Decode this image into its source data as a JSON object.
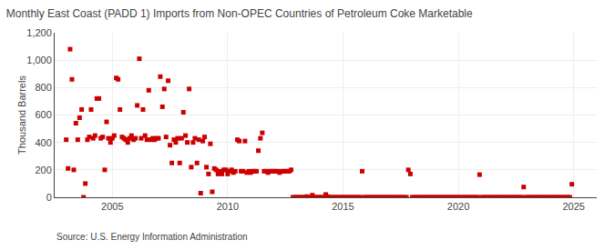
{
  "chart_data": {
    "type": "scatter",
    "title": "Monthly East Coast (PADD 1) Imports from Non-OPEC Countries of Petroleum Coke Marketable",
    "ylabel": "Thousand Barrels",
    "source": "Source: U.S. Energy Information Administration",
    "color": "#cc0000",
    "marker": "square",
    "grid": true,
    "xlim": [
      2002.5,
      2026.0
    ],
    "xticks": [
      2005,
      2010,
      2015,
      2020,
      2025
    ],
    "ylim": [
      0,
      1200
    ],
    "yticks": [
      0,
      200,
      400,
      600,
      800,
      {
        "value": 1000,
        "label": "1,000"
      },
      {
        "value": 1200,
        "label": "1,200"
      }
    ],
    "x": [
      2003.0,
      2003.08,
      2003.17,
      2003.25,
      2003.33,
      2003.42,
      2003.5,
      2003.58,
      2003.67,
      2003.75,
      2003.83,
      2003.92,
      2004.0,
      2004.08,
      2004.17,
      2004.25,
      2004.33,
      2004.42,
      2004.5,
      2004.58,
      2004.67,
      2004.75,
      2004.83,
      2004.92,
      2005.0,
      2005.08,
      2005.17,
      2005.25,
      2005.33,
      2005.42,
      2005.5,
      2005.58,
      2005.67,
      2005.75,
      2005.83,
      2005.92,
      2006.0,
      2006.08,
      2006.17,
      2006.25,
      2006.33,
      2006.42,
      2006.5,
      2006.58,
      2006.67,
      2006.75,
      2006.83,
      2006.92,
      2007.0,
      2007.08,
      2007.17,
      2007.25,
      2007.33,
      2007.42,
      2007.5,
      2007.58,
      2007.67,
      2007.75,
      2007.83,
      2007.92,
      2008.0,
      2008.08,
      2008.17,
      2008.25,
      2008.33,
      2008.42,
      2008.5,
      2008.58,
      2008.67,
      2008.75,
      2008.83,
      2008.92,
      2009.0,
      2009.08,
      2009.17,
      2009.25,
      2009.33,
      2009.42,
      2009.5,
      2009.58,
      2009.67,
      2009.75,
      2009.83,
      2009.92,
      2010.0,
      2010.08,
      2010.17,
      2010.25,
      2010.33,
      2010.42,
      2010.5,
      2010.58,
      2010.67,
      2010.75,
      2010.83,
      2010.92,
      2011.0,
      2011.08,
      2011.17,
      2011.25,
      2011.33,
      2011.42,
      2011.5,
      2011.58,
      2011.67,
      2011.75,
      2011.83,
      2011.92,
      2012.0,
      2012.08,
      2012.17,
      2012.25,
      2012.33,
      2012.42,
      2012.5,
      2012.58,
      2012.67,
      2012.75,
      2012.83,
      2012.92,
      2013.0,
      2013.08,
      2013.17,
      2013.25,
      2013.33,
      2013.42,
      2013.5,
      2013.58,
      2013.67,
      2013.75,
      2013.83,
      2013.92,
      2014.0,
      2014.08,
      2014.17,
      2014.25,
      2014.33,
      2014.42,
      2014.5,
      2014.58,
      2014.67,
      2014.75,
      2014.83,
      2014.92,
      2015.0,
      2015.08,
      2015.17,
      2015.25,
      2015.33,
      2015.42,
      2015.5,
      2015.58,
      2015.67,
      2015.75,
      2015.83,
      2015.92,
      2016.0,
      2016.08,
      2016.17,
      2016.25,
      2016.33,
      2016.42,
      2016.5,
      2016.58,
      2016.67,
      2016.75,
      2016.83,
      2016.92,
      2017.0,
      2017.08,
      2017.17,
      2017.25,
      2017.33,
      2017.42,
      2017.5,
      2017.58,
      2017.67,
      2017.75,
      2017.83,
      2017.92,
      2018.0,
      2018.08,
      2018.17,
      2018.25,
      2018.33,
      2018.42,
      2018.5,
      2018.58,
      2018.67,
      2018.75,
      2018.83,
      2018.92,
      2019.0,
      2019.08,
      2019.17,
      2019.25,
      2019.33,
      2019.42,
      2019.5,
      2019.58,
      2019.67,
      2019.75,
      2019.83,
      2019.92,
      2020.0,
      2020.08,
      2020.17,
      2020.25,
      2020.33,
      2020.42,
      2020.5,
      2020.58,
      2020.67,
      2020.75,
      2020.83,
      2020.92,
      2021.0,
      2021.08,
      2021.17,
      2021.25,
      2021.33,
      2021.42,
      2021.5,
      2021.58,
      2021.67,
      2021.75,
      2021.83,
      2021.92,
      2022.0,
      2022.08,
      2022.17,
      2022.25,
      2022.33,
      2022.42,
      2022.5,
      2022.58,
      2022.67,
      2022.75,
      2022.83,
      2022.92,
      2023.0,
      2023.08,
      2023.17,
      2023.25,
      2023.33,
      2023.42,
      2023.5,
      2023.58,
      2023.67,
      2023.75,
      2023.83,
      2023.92,
      2024.0,
      2024.08,
      2024.17,
      2024.25,
      2024.33,
      2024.42,
      2024.5,
      2024.58,
      2024.67,
      2024.75,
      2024.83,
      2024.92
    ],
    "values": [
      420,
      210,
      1080,
      860,
      200,
      540,
      420,
      580,
      640,
      0,
      100,
      420,
      440,
      640,
      430,
      450,
      720,
      720,
      430,
      440,
      200,
      550,
      430,
      400,
      430,
      450,
      870,
      860,
      640,
      440,
      430,
      420,
      400,
      430,
      450,
      420,
      430,
      670,
      1010,
      430,
      640,
      450,
      420,
      780,
      420,
      430,
      420,
      430,
      430,
      880,
      660,
      790,
      440,
      850,
      380,
      250,
      420,
      400,
      430,
      250,
      430,
      620,
      450,
      400,
      790,
      220,
      400,
      430,
      250,
      420,
      30,
      410,
      440,
      220,
      170,
      390,
      40,
      210,
      200,
      170,
      190,
      170,
      200,
      200,
      170,
      190,
      200,
      180,
      190,
      420,
      410,
      190,
      190,
      410,
      180,
      190,
      180,
      190,
      190,
      190,
      340,
      430,
      470,
      190,
      190,
      180,
      190,
      190,
      190,
      190,
      190,
      180,
      190,
      190,
      190,
      190,
      190,
      200,
      0,
      0,
      0,
      0,
      0,
      0,
      0,
      5,
      0,
      0,
      15,
      0,
      0,
      0,
      0,
      0,
      0,
      20,
      5,
      0,
      0,
      0,
      0,
      0,
      0,
      0,
      0,
      0,
      0,
      0,
      0,
      0,
      0,
      0,
      0,
      0,
      190,
      0,
      0,
      0,
      0,
      0,
      0,
      0,
      0,
      0,
      0,
      0,
      0,
      0,
      0,
      0,
      0,
      0,
      0,
      0,
      0,
      0,
      0,
      0,
      200,
      170,
      0,
      0,
      0,
      0,
      0,
      0,
      0,
      0,
      0,
      0,
      0,
      0,
      0,
      0,
      0,
      0,
      0,
      0,
      0,
      0,
      0,
      0,
      0,
      0,
      0,
      0,
      0,
      0,
      0,
      0,
      0,
      0,
      0,
      0,
      0,
      165,
      0,
      0,
      0,
      0,
      0,
      0,
      0,
      0,
      0,
      0,
      0,
      0,
      0,
      0,
      0,
      0,
      0,
      0,
      0,
      0,
      0,
      0,
      75,
      0,
      0,
      0,
      0,
      0,
      0,
      0,
      0,
      0,
      0,
      0,
      0,
      0,
      0,
      0,
      0,
      0,
      0,
      0,
      0,
      0,
      0,
      0,
      0,
      95
    ]
  }
}
